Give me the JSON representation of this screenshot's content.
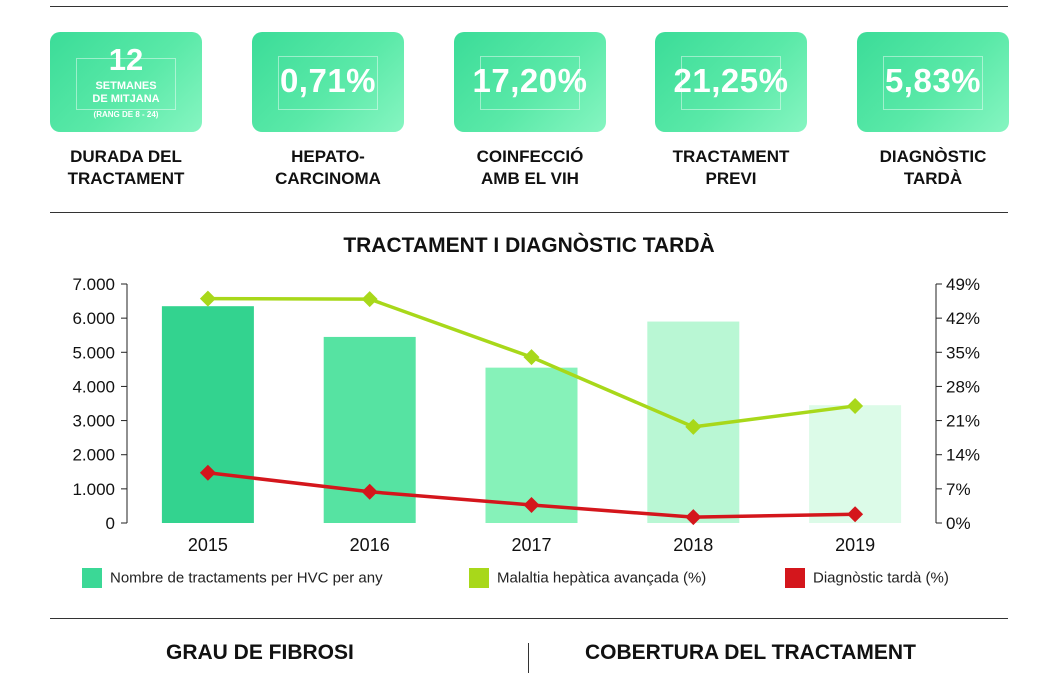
{
  "kpis": [
    {
      "value": "12",
      "sub1": "SETMANES",
      "sub1b": "DE MITJANA",
      "sub2": "(RANG DE 8 - 24)",
      "label": "DURADA DEL\nTRACTAMENT"
    },
    {
      "value": "0,71%",
      "label": "HEPATO-\nCARCINOMA"
    },
    {
      "value": "17,20%",
      "label": "COINFECCIÓ\nAMB EL VIH"
    },
    {
      "value": "21,25%",
      "label": "TRACTAMENT\nPREVI"
    },
    {
      "value": "5,83%",
      "label": "DIAGNÒSTIC\nTARDÀ"
    }
  ],
  "chart_data": {
    "type": "bar",
    "title": "TRACTAMENT I DIAGNÒSTIC TARDÀ",
    "categories": [
      "2015",
      "2016",
      "2017",
      "2018",
      "2019"
    ],
    "left_axis": {
      "ticks": [
        "0",
        "1.000",
        "2.000",
        "3.000",
        "4.000",
        "5.000",
        "6.000",
        "7.000"
      ],
      "range": [
        0,
        7000
      ]
    },
    "right_axis": {
      "ticks": [
        "0%",
        "7%",
        "14%",
        "21%",
        "28%",
        "35%",
        "42%",
        "49%"
      ],
      "range": [
        0,
        49
      ]
    },
    "series": [
      {
        "name": "Nombre de tractaments per HVC per any",
        "kind": "bar",
        "axis": "left",
        "values": [
          6350,
          5450,
          4550,
          5900,
          3450
        ],
        "colors": [
          "#33d38f",
          "#56e3a2",
          "#86f2b9",
          "#b9f7d4",
          "#dcfbe8"
        ]
      },
      {
        "name": "Malaltia hepàtica avançada (%)",
        "kind": "line",
        "axis": "right",
        "values": [
          46.0,
          45.9,
          34.0,
          19.7,
          24.0
        ],
        "color": "#a8d81a"
      },
      {
        "name": "Diagnòstic tardà (%)",
        "kind": "line",
        "axis": "right",
        "values": [
          10.3,
          6.4,
          3.7,
          1.2,
          1.8
        ],
        "color": "#d4161c"
      }
    ],
    "legend_colors": [
      "#3bd896",
      "#a8d81a",
      "#d4161c"
    ],
    "legend_position": "bottom"
  },
  "bottom": {
    "left_title": "GRAU DE FIBROSI",
    "right_title": "COBERTURA DEL TRACTAMENT"
  }
}
